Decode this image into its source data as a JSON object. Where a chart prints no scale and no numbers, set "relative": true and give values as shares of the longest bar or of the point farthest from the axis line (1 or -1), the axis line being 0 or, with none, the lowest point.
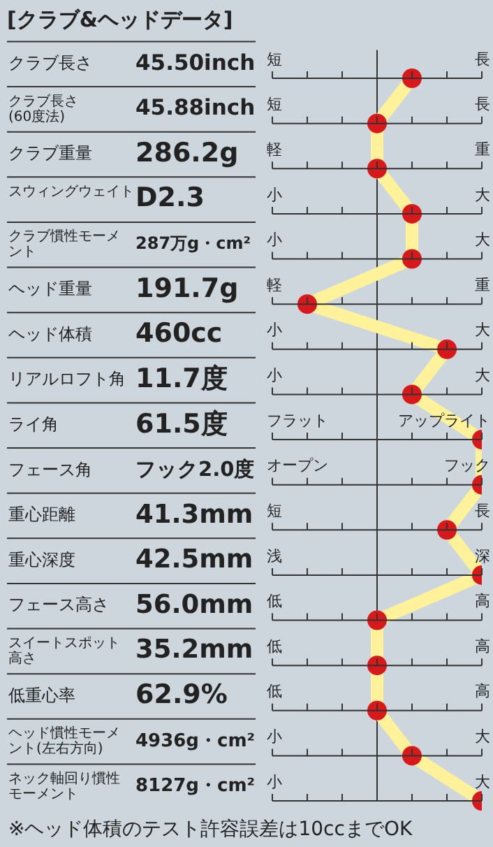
{
  "chart_data": {
    "type": "line",
    "orientation": "horizontal",
    "relative": true,
    "title": "[クラブ&ヘッドデータ]",
    "categories": [
      "クラブ長さ",
      "クラブ長さ(60度法)",
      "クラブ重量",
      "スウィングウェイト",
      "クラブ慣性モーメント",
      "ヘッド重量",
      "ヘッド体積",
      "リアルロフト角",
      "ライ角",
      "フェース角",
      "重心距離",
      "重心深度",
      "フェース高さ",
      "スイートスポット高さ",
      "低重心率",
      "ヘッド慣性モーメント(左右方向)",
      "ネック軸回り慣性モーメント"
    ],
    "series": [
      {
        "color": "#fff29a",
        "colors": [
          "#d7191c",
          "#d7191c",
          "#d7191c",
          "#d7191c",
          "#d7191c",
          "#d7191c",
          "#d7191c",
          "#d7191c",
          "#d7191c",
          "#d7191c",
          "#d7191c",
          "#d7191c",
          "#d7191c",
          "#d7191c",
          "#d7191c",
          "#d7191c",
          "#d7191c"
        ],
        "values": [
          0.333,
          0,
          0,
          0.333,
          0.333,
          -0.667,
          0.667,
          0.333,
          1,
          1,
          0.667,
          1,
          0,
          0,
          0,
          0.333,
          1
        ]
      }
    ],
    "marker": "circle",
    "line_style": "solid",
    "grid": "y",
    "legend": false,
    "annotations": [
      "45.50inch",
      "45.88inch",
      "286.2g",
      "D2.3",
      "287万g・cm²",
      "191.7g",
      "460cc",
      "11.7度",
      "61.5度",
      "フック2.0度",
      "41.3mm",
      "42.5mm",
      "56.0mm",
      "35.2mm",
      "62.9%",
      "4936g・cm²",
      "8127g・cm²",
      "短",
      "長",
      "短",
      "長",
      "軽",
      "重",
      "小",
      "大",
      "小",
      "大",
      "軽",
      "重",
      "小",
      "大",
      "小",
      "大",
      "フラット",
      "アップライト",
      "オープン",
      "フック",
      "短",
      "長",
      "浅",
      "深",
      "低",
      "高",
      "低",
      "高",
      "低",
      "高",
      "小",
      "大",
      "小",
      "大",
      "※ヘッド体積のテスト許容誤差は10ccまでOK"
    ]
  }
}
